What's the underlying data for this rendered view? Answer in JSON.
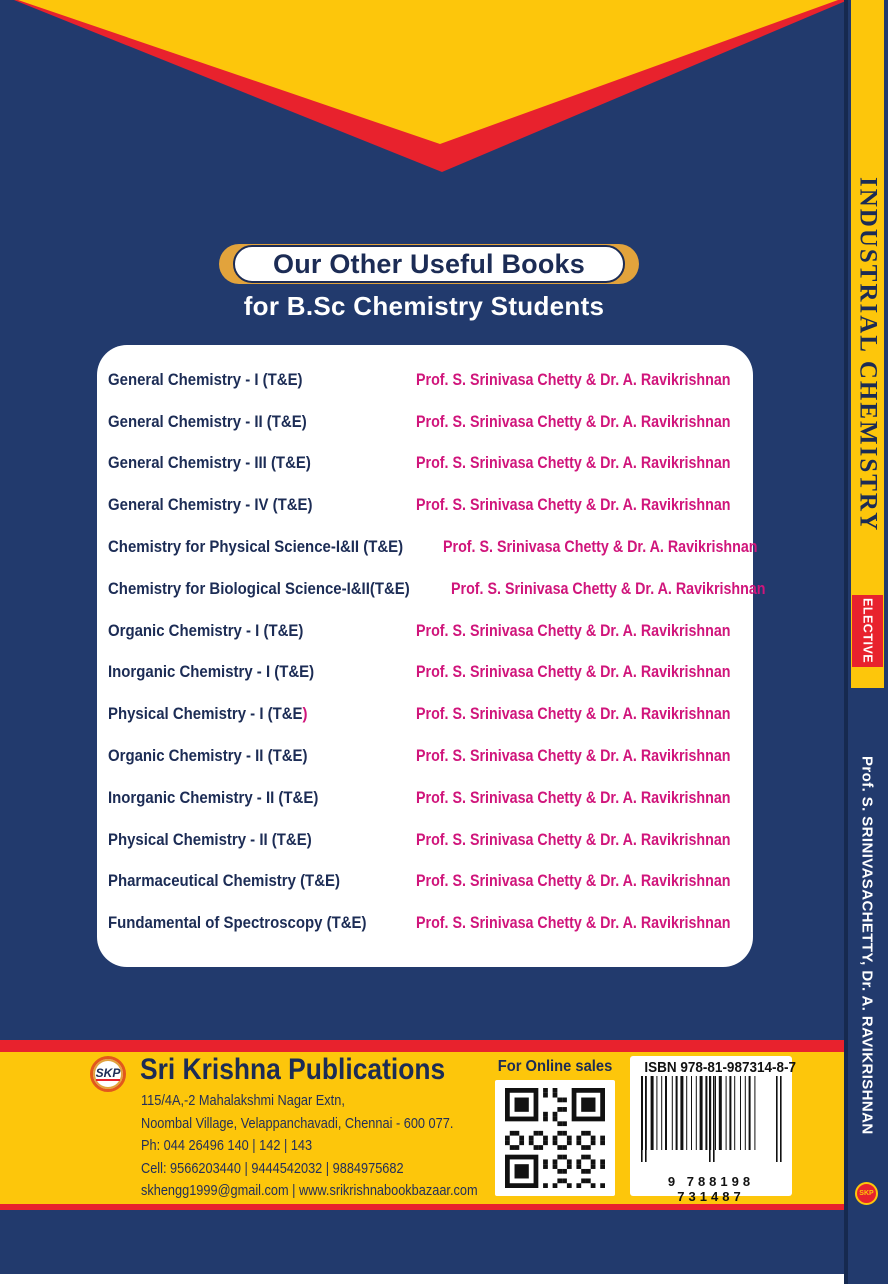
{
  "colors": {
    "navy": "#223a6d",
    "navy_dark": "#16294f",
    "navy_text": "#1c2c55",
    "yellow": "#fdc60b",
    "gold": "#e2a33c",
    "red": "#e8222d",
    "magenta": "#d0157b",
    "orange_ring": "#e2581c"
  },
  "banner": {
    "title": "Our Other Useful Books",
    "subtitle": "for B.Sc Chemistry Students"
  },
  "books": [
    {
      "title": "General Chemistry - I (T&E)",
      "author": "Prof. S. Srinivasa Chetty & Dr. A. Ravikrishnan"
    },
    {
      "title": "General Chemistry - II (T&E)",
      "author": "Prof. S. Srinivasa Chetty & Dr. A. Ravikrishnan"
    },
    {
      "title": "General Chemistry - III (T&E)",
      "author": "Prof. S. Srinivasa Chetty & Dr. A. Ravikrishnan"
    },
    {
      "title": "General Chemistry - IV (T&E)",
      "author": "Prof. S. Srinivasa Chetty & Dr. A. Ravikrishnan"
    },
    {
      "title": "Chemistry for Physical Science-I&II (T&E)",
      "author": "Prof. S. Srinivasa Chetty & Dr. A. Ravikrishnan"
    },
    {
      "title": "Chemistry for Biological Science-I&II(T&E)",
      "author": "Prof. S. Srinivasa Chetty & Dr. A. Ravikrishnan"
    },
    {
      "title": "Organic Chemistry - I (T&E)",
      "author": "Prof. S. Srinivasa Chetty & Dr. A. Ravikrishnan"
    },
    {
      "title": "Inorganic Chemistry - I (T&E)",
      "author": "Prof. S. Srinivasa Chetty & Dr. A. Ravikrishnan"
    },
    {
      "title": "Physical Chemistry - I (T&E",
      "suffix": ")",
      "author": "Prof. S. Srinivasa Chetty & Dr. A. Ravikrishnan"
    },
    {
      "title": "Organic Chemistry - II (T&E)",
      "author": "Prof. S. Srinivasa Chetty & Dr. A. Ravikrishnan"
    },
    {
      "title": "Inorganic Chemistry - II (T&E)",
      "author": "Prof. S. Srinivasa Chetty & Dr. A. Ravikrishnan"
    },
    {
      "title": "Physical Chemistry - II (T&E)",
      "author": "Prof. S. Srinivasa Chetty & Dr. A. Ravikrishnan"
    },
    {
      "title": "Pharmaceutical Chemistry (T&E)",
      "author": "Prof. S. Srinivasa Chetty & Dr. A. Ravikrishnan"
    },
    {
      "title": "Fundamental of Spectroscopy (T&E)",
      "author": "Prof. S. Srinivasa Chetty & Dr. A. Ravikrishnan"
    }
  ],
  "spine": {
    "title": "INDUSTRIAL CHEMISTRY",
    "badge": "ELECTIVE",
    "authors": "Prof. S. SRINIVASACHETTY, Dr. A. RAVIKRISHNAN",
    "logo_text": "SKP"
  },
  "publisher": {
    "logo_text": "SKP",
    "name": "Sri Krishna Publications",
    "lines": [
      "115/4A,-2 Mahalakshmi Nagar Extn,",
      "Noombal Village, Velappanchavadi, Chennai - 600 077.",
      "Ph: 044 26496 140 | 142 | 143",
      "Cell: 9566203440 | 9444542032 | 9884975682",
      "skhengg1999@gmail.com | www.srikrishnabookbazaar.com"
    ]
  },
  "online_sales": {
    "label": "For Online sales"
  },
  "isbn": {
    "label": "ISBN 978-81-987314-8-7",
    "digits": "9 788198 731487"
  }
}
